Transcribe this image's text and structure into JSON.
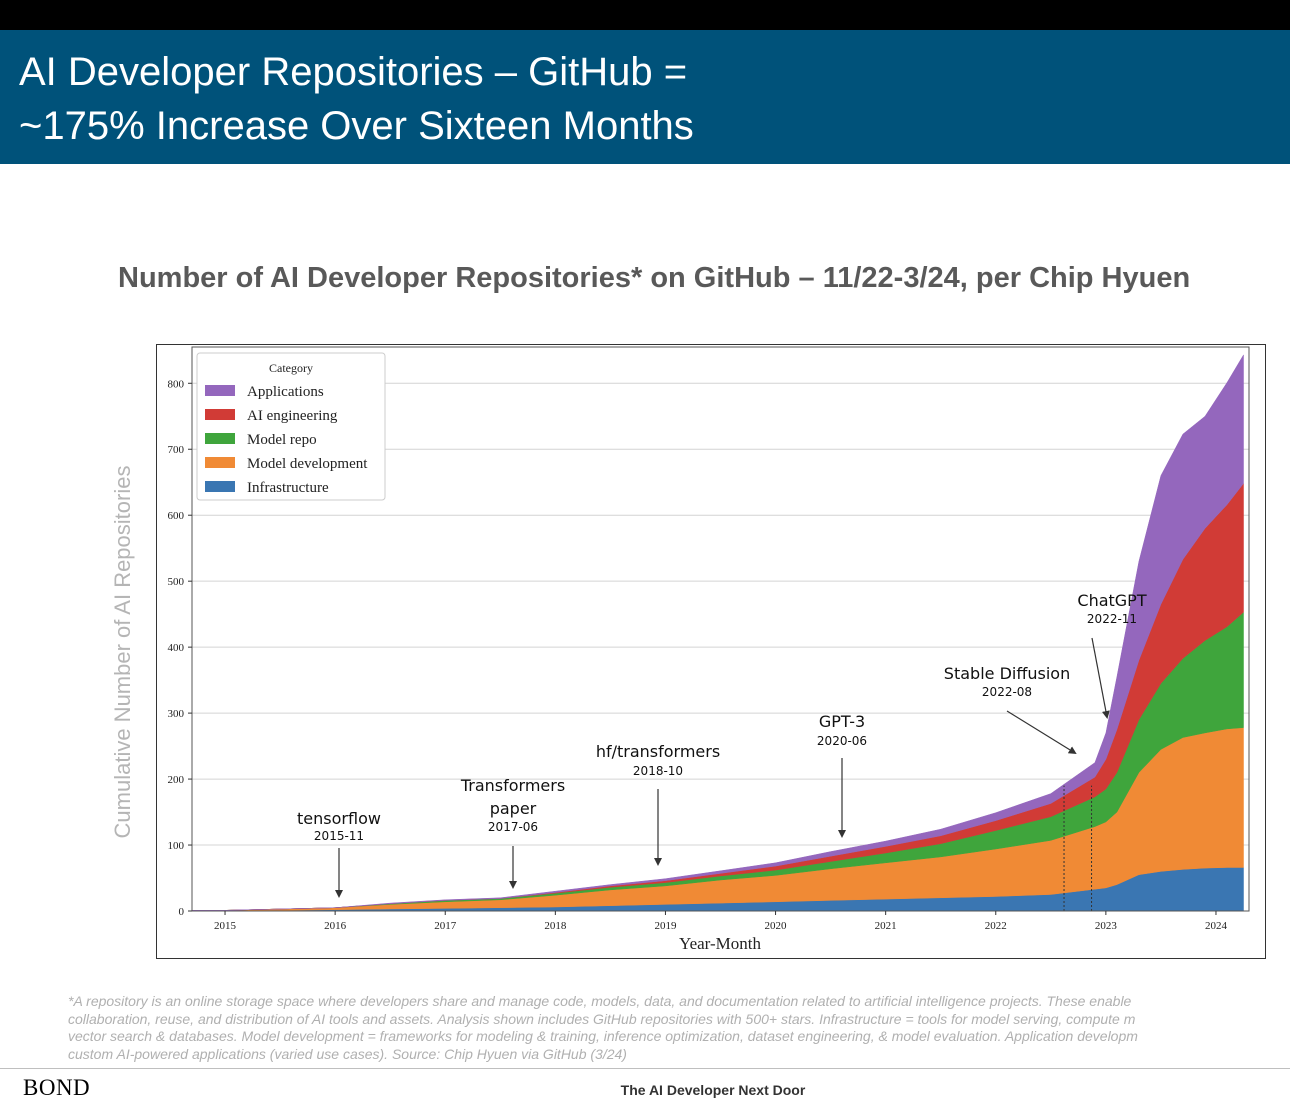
{
  "slide": {
    "title_line1": "AI Developer Repositories – GitHub =",
    "title_line2": "~175% Increase Over Sixteen Months",
    "chart_title": "Number of AI Developer Repositories* on GitHub – 11/22-3/24, per Chip Hyuen",
    "y_axis_caption": "Cumulative Number of AI Repositories",
    "footnote_lines": [
      "*A repository is an online storage space where developers share and manage code, models, data, and documentation related to artificial intelligence projects. These enable",
      "collaboration, reuse, and distribution of AI tools and assets. Analysis shown includes GitHub repositories with 500+ stars. Infrastructure = tools for model serving, compute m",
      "vector search & databases. Model development = frameworks for modeling & training, inference optimization, dataset engineering, & model evaluation. Application developm",
      "custom AI-powered applications (varied use cases). Source: Chip Hyuen via GitHub (3/24)"
    ],
    "footer_logo": "BOND",
    "footer_center": "The AI Developer Next Door"
  },
  "colors": {
    "title_bar": "#00527a",
    "Applications": "#9467bd",
    "AI engineering": "#d13b36",
    "Model repo": "#3fa53c",
    "Model development": "#f08a35",
    "Infrastructure": "#3a76b2"
  },
  "chart_data": {
    "type": "area",
    "stacked": true,
    "xlabel": "Year-Month",
    "ylabel": "",
    "xlim": [
      2014.7,
      2024.3
    ],
    "ylim": [
      0,
      855
    ],
    "x_ticks": [
      2015,
      2016,
      2017,
      2018,
      2019,
      2020,
      2021,
      2022,
      2023,
      2024
    ],
    "y_ticks": [
      0,
      100,
      200,
      300,
      400,
      500,
      600,
      700,
      800
    ],
    "grid": true,
    "legend": {
      "title": "Category",
      "position": "top-left",
      "entries": [
        "Applications",
        "AI engineering",
        "Model repo",
        "Model development",
        "Infrastructure"
      ]
    },
    "x": [
      2014.7,
      2015.0,
      2015.5,
      2016.0,
      2016.5,
      2017.0,
      2017.5,
      2018.0,
      2018.5,
      2019.0,
      2019.5,
      2020.0,
      2020.5,
      2021.0,
      2021.5,
      2022.0,
      2022.5,
      2022.9,
      2023.0,
      2023.1,
      2023.3,
      2023.5,
      2023.7,
      2023.9,
      2024.1,
      2024.25
    ],
    "series": [
      {
        "name": "Infrastructure",
        "values": [
          0,
          0,
          1,
          2,
          3,
          4,
          5,
          6,
          8,
          10,
          12,
          14,
          16,
          18,
          20,
          22,
          25,
          33,
          35,
          40,
          55,
          60,
          63,
          65,
          66,
          66
        ]
      },
      {
        "name": "Model development",
        "values": [
          1,
          1,
          2,
          3,
          7,
          10,
          12,
          18,
          24,
          28,
          35,
          40,
          48,
          55,
          62,
          72,
          82,
          95,
          100,
          110,
          155,
          185,
          200,
          205,
          210,
          212
        ]
      },
      {
        "name": "Model repo",
        "values": [
          0,
          0,
          0,
          0,
          1,
          2,
          2,
          3,
          4,
          5,
          6,
          8,
          11,
          15,
          20,
          28,
          36,
          45,
          50,
          60,
          80,
          100,
          120,
          140,
          155,
          175
        ]
      },
      {
        "name": "AI engineering",
        "values": [
          0,
          0,
          0,
          0,
          0,
          0,
          0,
          1,
          2,
          3,
          4,
          6,
          8,
          10,
          12,
          15,
          20,
          30,
          45,
          65,
          90,
          120,
          150,
          170,
          185,
          195
        ]
      },
      {
        "name": "Applications",
        "values": [
          0,
          0,
          0,
          0,
          1,
          1,
          1,
          2,
          2,
          3,
          4,
          5,
          7,
          8,
          10,
          12,
          15,
          22,
          40,
          80,
          150,
          195,
          190,
          170,
          185,
          195
        ]
      }
    ],
    "annotations": [
      {
        "label": "tensorflow",
        "date": "2015-11",
        "x": 2015.87
      },
      {
        "label": "Transformers paper",
        "line1": "Transformers",
        "line2": "paper",
        "date": "2017-06",
        "x": 2017.42
      },
      {
        "label": "hf/transformers",
        "date": "2018-10",
        "x": 2018.79
      },
      {
        "label": "GPT-3",
        "date": "2020-06",
        "x": 2020.46
      },
      {
        "label": "Stable Diffusion",
        "date": "2022-08",
        "x": 2022.62
      },
      {
        "label": "ChatGPT",
        "date": "2022-11",
        "x": 2022.87
      }
    ]
  }
}
